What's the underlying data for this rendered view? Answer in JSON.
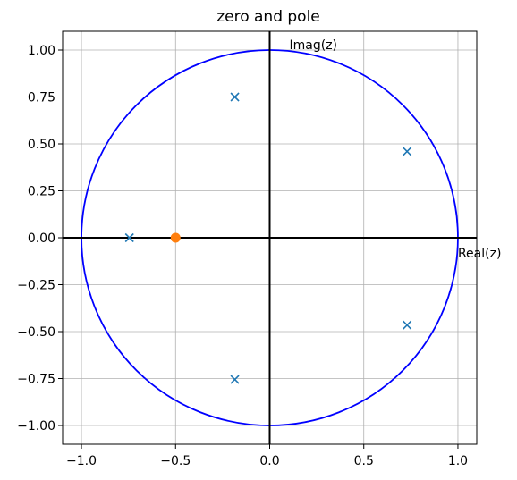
{
  "chart_data": {
    "type": "scatter",
    "title": "zero and pole",
    "xlabel": "",
    "ylabel": "",
    "xlim": [
      -1.1,
      1.1
    ],
    "ylim": [
      -1.1,
      1.1
    ],
    "xticks": [
      -1.0,
      -0.5,
      0.0,
      0.5,
      1.0
    ],
    "xtick_labels": [
      "−1.0",
      "−0.5",
      "0.0",
      "0.5",
      "1.0"
    ],
    "yticks": [
      1.0,
      0.75,
      0.5,
      0.25,
      0.0,
      -0.25,
      -0.5,
      -0.75,
      -1.0
    ],
    "ytick_labels": [
      "1.00",
      "0.75",
      "0.50",
      "0.25",
      "0.00",
      "−0.25",
      "−0.50",
      "−0.75",
      "−1.00"
    ],
    "grid": true,
    "axis_annotations": {
      "real": "Real(z)",
      "imag": "Imag(z)"
    },
    "unit_circle": {
      "radius": 1.0,
      "color": "#0000ff"
    },
    "axis_line_color": "#000000",
    "series": [
      {
        "marker": "x",
        "color": "#1f77b4",
        "points": [
          [
            -0.745,
            0.0
          ],
          [
            -0.185,
            0.75
          ],
          [
            -0.185,
            -0.755
          ],
          [
            0.73,
            0.46
          ],
          [
            0.73,
            -0.465
          ]
        ]
      },
      {
        "marker": "o",
        "color": "#ff7f0e",
        "points": [
          [
            -0.5,
            0.0
          ]
        ]
      }
    ]
  }
}
